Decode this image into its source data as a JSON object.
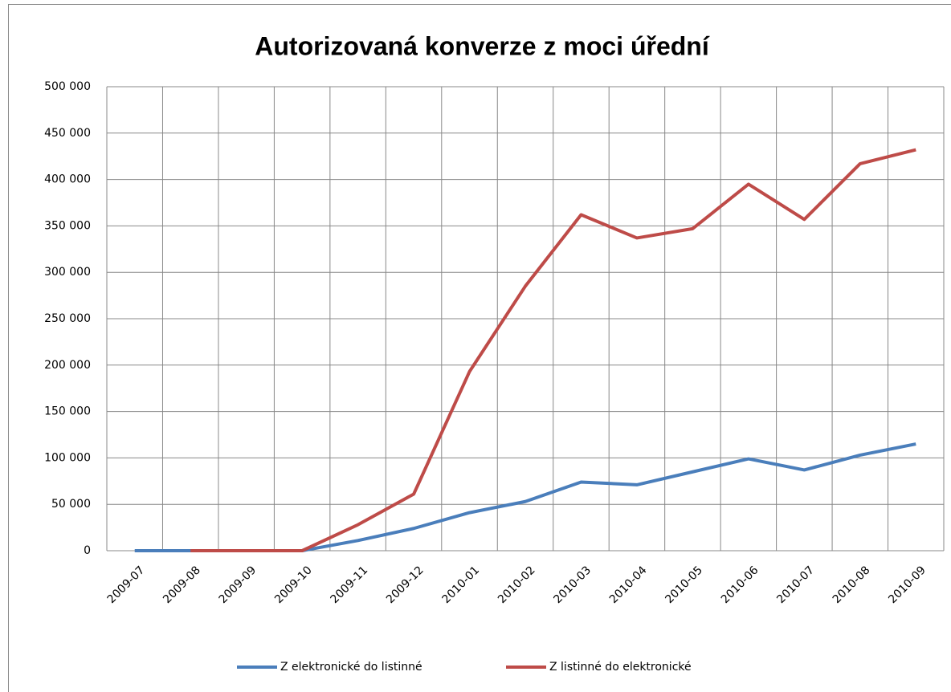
{
  "chart_data": {
    "type": "line",
    "title": "Autorizovaná konverze z moci úřední",
    "categories": [
      "2009-07",
      "2009-08",
      "2009-09",
      "2009-10",
      "2009-11",
      "2009-12",
      "2010-01",
      "2010-02",
      "2010-03",
      "2010-04",
      "2010-05",
      "2010-06",
      "2010-07",
      "2010-08",
      "2010-09"
    ],
    "series": [
      {
        "name": "Z elektronické do listinné",
        "color": "#4a7ebb",
        "values": [
          0,
          0,
          0,
          0,
          11000,
          24000,
          41000,
          53000,
          74000,
          71000,
          85000,
          99000,
          87000,
          103000,
          115000
        ]
      },
      {
        "name": "Z listinné do elektronické",
        "color": "#be4b48",
        "values": [
          null,
          0,
          0,
          0,
          28000,
          61000,
          193000,
          285000,
          362000,
          337000,
          347000,
          395000,
          357000,
          417000,
          432000
        ]
      }
    ],
    "ylim": [
      0,
      500000
    ],
    "yticks": [
      0,
      {
        "value": 50000,
        "label": "50 000"
      },
      {
        "value": 100000,
        "label": "100 000"
      },
      {
        "value": 150000,
        "label": "150 000"
      },
      {
        "value": 200000,
        "label": "200 000"
      },
      {
        "value": 250000,
        "label": "250 000"
      },
      {
        "value": 300000,
        "label": "300 000"
      },
      {
        "value": 350000,
        "label": "350 000"
      },
      {
        "value": 400000,
        "label": "400 000"
      },
      {
        "value": 450000,
        "label": "450 000"
      },
      {
        "value": 500000,
        "label": "500 000"
      }
    ],
    "grid": true,
    "legend": "bottom"
  }
}
